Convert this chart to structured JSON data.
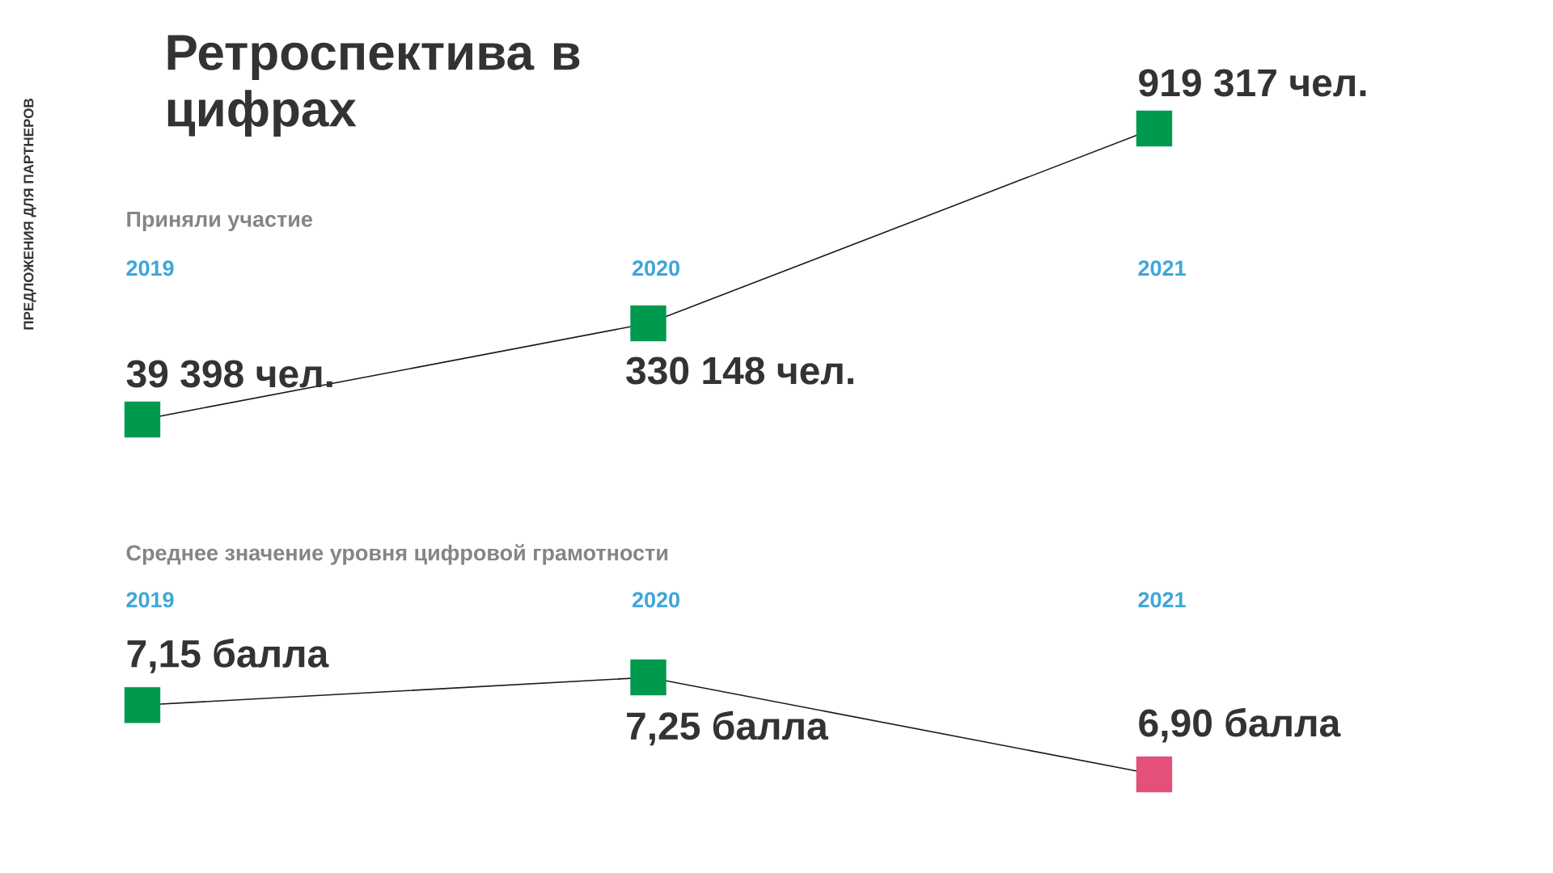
{
  "chart_data": [
    {
      "type": "line",
      "title": "Ретроспектива в цифрах",
      "subtitle": "Приняли участие",
      "annotations": [
        "ПРЕДЛОЖЕНИЯ ДЛЯ ПАРТНЕРОВ"
      ],
      "marker": "square",
      "line_style": "solid",
      "categories": [
        "2019",
        "2020",
        "2021"
      ],
      "series": [
        {
          "color": "#1a1a1a",
          "colors": [
            "#009a4e",
            "#009a4e",
            "#009a4e"
          ],
          "values": [
            39398,
            330148,
            919317
          ],
          "value_labels": [
            "39 398 чел.",
            "330 148 чел.",
            "919 317 чел."
          ]
        }
      ]
    },
    {
      "type": "line",
      "title": "Среднее значение уровня цифровой грамотности",
      "marker": "square",
      "line_style": "solid",
      "categories": [
        "2019",
        "2020",
        "2021"
      ],
      "series": [
        {
          "color": "#1a1a1a",
          "colors": [
            "#009a4e",
            "#009a4e",
            "#e4507a"
          ],
          "values": [
            7.15,
            7.25,
            6.9
          ],
          "value_labels": [
            "7,15 балла",
            "7,25 балла",
            "6,90 балла"
          ]
        }
      ]
    }
  ]
}
